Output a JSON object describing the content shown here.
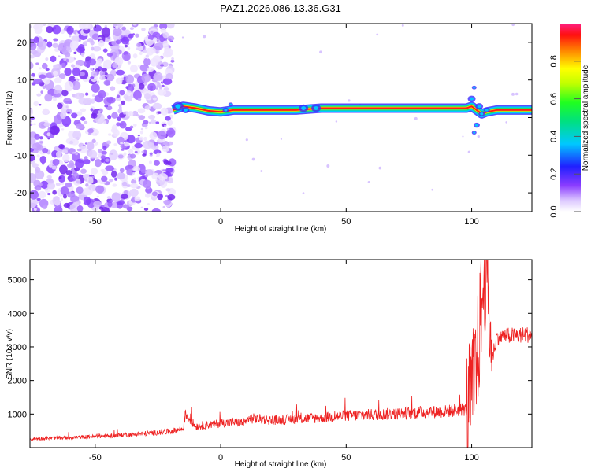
{
  "title": "PAZ1.2026.086.13.36.G31",
  "colorbar": {
    "label": "Normalized spectral amplitude",
    "ticks": [
      "0.0",
      "0.2",
      "0.4",
      "0.6",
      "0.8"
    ],
    "tick_values": [
      0.0,
      0.2,
      0.4,
      0.6,
      0.8
    ],
    "range": [
      0,
      1
    ]
  },
  "colors": {
    "snr_line": "#ee2222",
    "scatter_purple": "#7a2fff"
  },
  "chart_data": [
    {
      "type": "heatmap",
      "title": "PAZ1.2026.086.13.36.G31",
      "xlabel": "Height of straight line (km)",
      "ylabel": "Frequency (Hz)",
      "xlim": [
        -76,
        124
      ],
      "ylim": [
        -25,
        25
      ],
      "xticks": [
        "-50",
        "0",
        "50",
        "100"
      ],
      "xtick_values": [
        -50,
        0,
        50,
        100
      ],
      "yticks": [
        "20",
        "10",
        "0",
        "-10",
        "-20"
      ],
      "ytick_values": [
        20,
        10,
        0,
        -10,
        -20
      ],
      "colorbar": "Normalized spectral amplitude",
      "noise_region_x": [
        -76,
        -19
      ],
      "signal_ridge": {
        "x": [
          -19,
          -15,
          -10,
          -5,
          0,
          5,
          10,
          20,
          30,
          40,
          50,
          60,
          70,
          80,
          90,
          98,
          100,
          102,
          104,
          106,
          110,
          124
        ],
        "frequency_hz": [
          2,
          3,
          2.5,
          1.8,
          1.5,
          2,
          2,
          2,
          2,
          2.5,
          2.5,
          2.5,
          2.5,
          2.5,
          2.5,
          2.5,
          3,
          2,
          1,
          1.5,
          2,
          2
        ]
      }
    },
    {
      "type": "line",
      "xlabel": "Height of straight line (km)",
      "ylabel": "SNR (10 * v/v)",
      "xlim": [
        -76,
        124
      ],
      "ylim": [
        0,
        5600
      ],
      "xticks": [
        "-50",
        "0",
        "50",
        "100"
      ],
      "xtick_values": [
        -50,
        0,
        50,
        100
      ],
      "yticks": [
        "1000",
        "2000",
        "3000",
        "4000",
        "5000"
      ],
      "ytick_values": [
        1000,
        2000,
        3000,
        4000,
        5000
      ],
      "series": [
        {
          "x": [
            -76,
            -70,
            -60,
            -50,
            -40,
            -30,
            -20,
            -15,
            -14,
            -10,
            -5,
            0,
            5,
            10,
            11,
            20,
            30,
            40,
            50,
            60,
            70,
            80,
            90,
            95,
            98,
            100,
            102,
            104,
            106,
            108,
            110,
            115,
            120,
            124
          ],
          "y": [
            250,
            280,
            300,
            330,
            370,
            420,
            480,
            560,
            1000,
            640,
            680,
            720,
            760,
            730,
            880,
            820,
            850,
            890,
            950,
            980,
            1010,
            1050,
            1080,
            1130,
            1150,
            1600,
            2400,
            4300,
            5600,
            2600,
            3300,
            3330,
            3350,
            3380
          ]
        }
      ]
    }
  ]
}
